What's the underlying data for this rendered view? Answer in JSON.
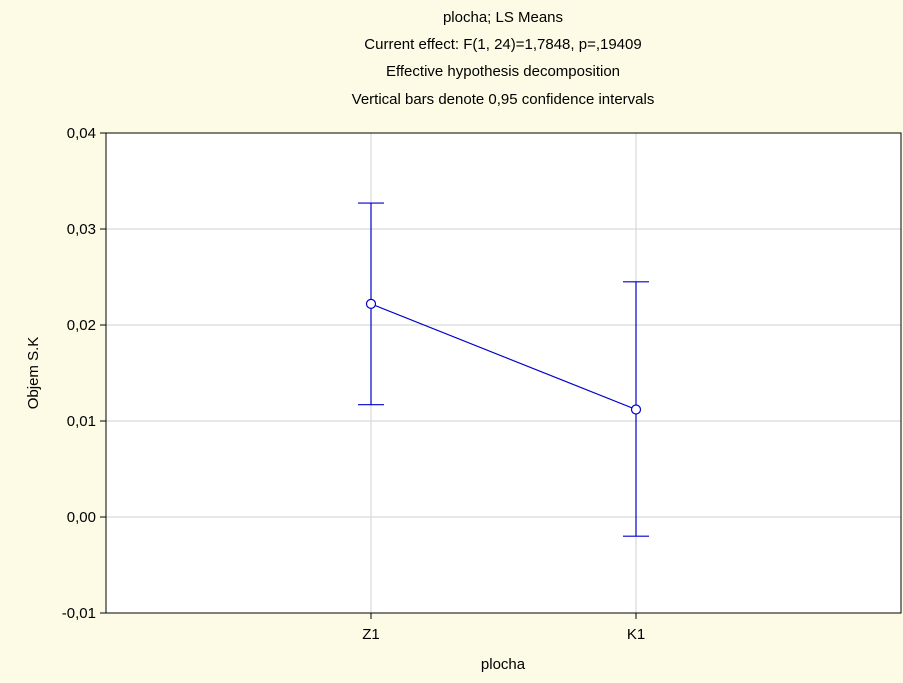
{
  "chart_data": {
    "type": "line",
    "title_lines": [
      "plocha; LS Means",
      "Current effect: F(1, 24)=1,7848, p=,19409",
      "Effective hypothesis decomposition",
      "Vertical bars denote 0,95 confidence intervals"
    ],
    "xlabel": "plocha",
    "ylabel": "Objem S.K",
    "categories": [
      "Z1",
      "K1"
    ],
    "series": [
      {
        "values": [
          0.0222,
          0.0112
        ],
        "ci_lower": [
          0.0117,
          -0.002
        ],
        "ci_upper": [
          0.0327,
          0.0245
        ]
      }
    ],
    "ylim": [
      -0.01,
      0.04
    ],
    "yticks": [
      -0.01,
      0.0,
      0.01,
      0.02,
      0.03,
      0.04
    ],
    "ytick_labels": [
      "-0,01",
      "0,00",
      "0,01",
      "0,02",
      "0,03",
      "0,04"
    ],
    "grid": true,
    "colors": {
      "background": "#fdfbe6",
      "plot_area": "#ffffff",
      "series": "#0000cc",
      "grid": "#d0d0d0"
    }
  }
}
